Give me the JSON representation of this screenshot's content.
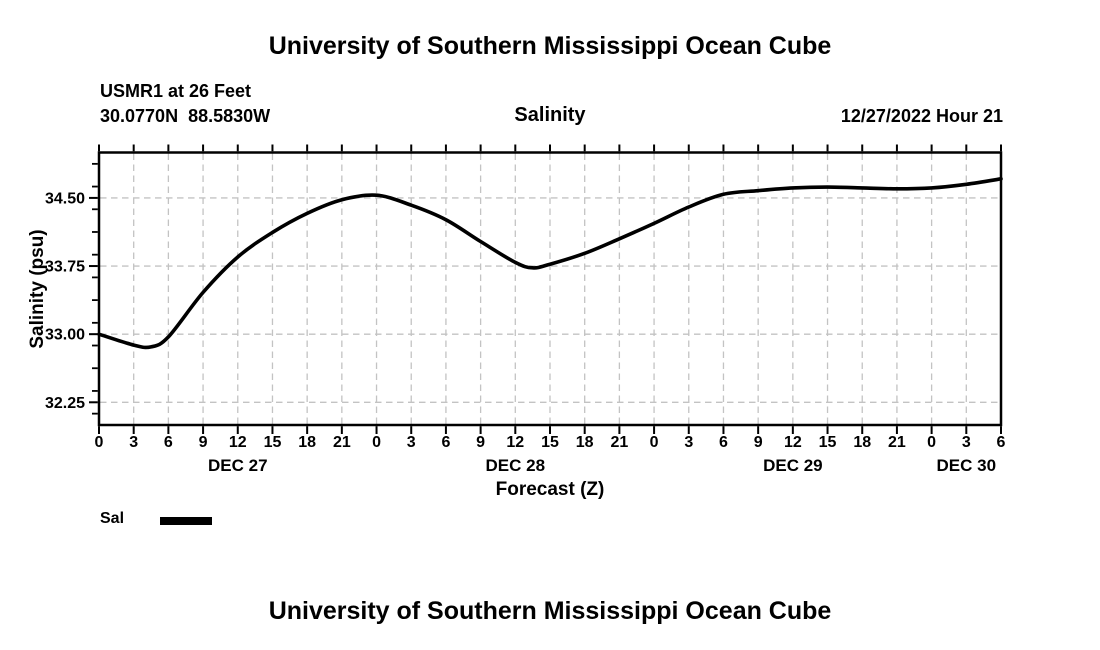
{
  "page": {
    "top_title": "University of Southern Mississippi Ocean Cube",
    "bottom_title": "University of Southern Mississippi Ocean Cube"
  },
  "header": {
    "station": "USMR1 at 26 Feet",
    "coordinates": "30.0770N  88.5830W",
    "plot_title": "Salinity",
    "run_time": "12/27/2022 Hour 21"
  },
  "legend": {
    "label": "Sal",
    "color": "#000000"
  },
  "chart_data": {
    "type": "line",
    "title": "Salinity",
    "xlabel": "Forecast (Z)",
    "ylabel": "Salinity (psu)",
    "series_name": "Sal",
    "x_unit": "forecast hour (Z) from Dec 27 00Z",
    "x_hours": [
      0,
      3,
      4.5,
      6,
      9,
      12,
      15,
      18,
      21,
      24,
      27,
      30,
      33,
      36,
      37.5,
      39,
      42,
      45,
      48,
      51,
      54,
      57,
      60,
      63,
      66,
      69,
      72,
      75,
      78
    ],
    "values": [
      33.0,
      32.88,
      32.86,
      32.97,
      33.46,
      33.85,
      34.12,
      34.33,
      34.48,
      34.53,
      34.42,
      34.26,
      34.02,
      33.79,
      33.73,
      33.77,
      33.89,
      34.05,
      34.22,
      34.4,
      34.54,
      34.58,
      34.61,
      34.62,
      34.61,
      34.6,
      34.61,
      34.65,
      34.71
    ],
    "xlim": [
      0,
      78
    ],
    "ylim": [
      32.0,
      35.0
    ],
    "x_tick_step_hours": 3,
    "x_tick_labels": [
      "0",
      "3",
      "6",
      "9",
      "12",
      "15",
      "18",
      "21",
      "0",
      "3",
      "6",
      "9",
      "12",
      "15",
      "18",
      "21",
      "0",
      "3",
      "6",
      "9",
      "12",
      "15",
      "18",
      "21",
      "0",
      "3",
      "6"
    ],
    "day_labels": [
      {
        "label": "DEC 27",
        "hour": 12
      },
      {
        "label": "DEC 28",
        "hour": 36
      },
      {
        "label": "DEC 29",
        "hour": 60
      },
      {
        "label": "DEC 30",
        "hour": 75
      }
    ],
    "y_major_ticks": [
      32.25,
      33.0,
      33.75,
      34.5
    ],
    "y_tick_labels": [
      "32.25",
      "33.00",
      "33.75",
      "34.50"
    ],
    "y_minor_ticks": [
      32.125,
      32.375,
      32.625,
      32.875,
      33.125,
      33.375,
      33.625,
      33.875,
      34.125,
      34.375,
      34.625,
      34.875
    ],
    "grid": "dashed, both axes at labeled ticks",
    "grid_color": "#c3c3c3",
    "line_color": "#000000",
    "axis_color": "#000000",
    "legend_position": "below plot, bottom-left"
  }
}
